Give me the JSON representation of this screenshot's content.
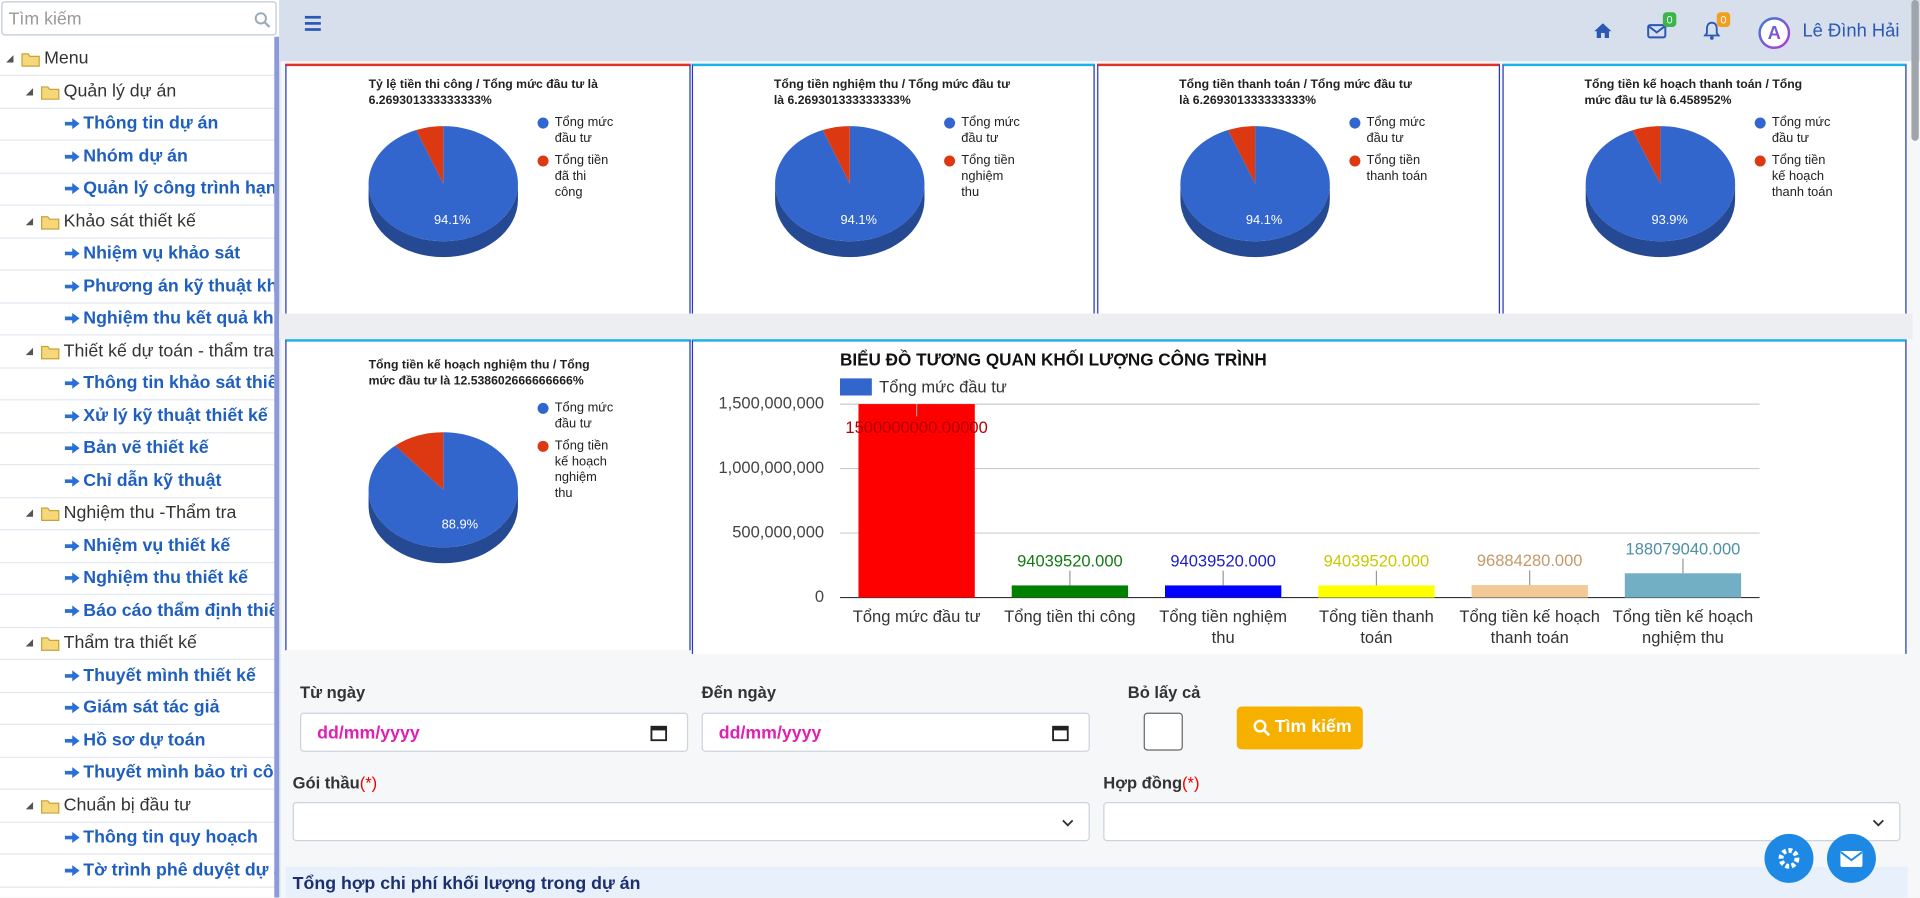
{
  "sidebar": {
    "search_placeholder": "Tìm kiếm",
    "tree": {
      "label": "Menu",
      "groups": [
        {
          "label": "Quản lý dự án",
          "items": [
            "Thông tin dự án",
            "Nhóm dự án",
            "Quản lý công trình hạn"
          ]
        },
        {
          "label": "Khảo sát thiết kế",
          "items": [
            "Nhiệm vụ khảo sát",
            "Phương án kỹ thuật kh",
            "Nghiệm thu kết quả kh"
          ]
        },
        {
          "label": "Thiết kế dự toán - thẩm tra",
          "items": [
            "Thông tin khảo sát thiế",
            "Xử lý kỹ thuật thiết kế",
            "Bản vẽ thiết kế",
            "Chỉ dẫn kỹ thuật"
          ]
        },
        {
          "label": "Nghiệm thu -Thẩm tra",
          "items": [
            "Nhiệm vụ thiết kế",
            "Nghiệm thu thiết kế",
            "Báo cáo thẩm định thiế"
          ]
        },
        {
          "label": "Thẩm tra thiết kế",
          "items": [
            "Thuyết mình thiết kế",
            "Giám sát tác giả",
            "Hồ sơ dự toán",
            "Thuyết mình bảo trì cô"
          ]
        },
        {
          "label": "Chuẩn bị đầu tư",
          "items": [
            "Thông tin quy hoạch",
            "Tờ trình phê duyệt dự á"
          ]
        }
      ]
    }
  },
  "header": {
    "mail_badge": 0,
    "bell_badge": 0,
    "avatar_initial": "A",
    "user_name": "Lê Đình Hải"
  },
  "chart_data": [
    {
      "type": "pie",
      "title": "Tỷ lệ tiền thi công / Tổng mức đầu tư là 6.269301333333333%",
      "categories": [
        "Tổng mức đầu tư",
        "Tổng tiền đã thi công"
      ],
      "values": [
        94.1,
        5.9
      ],
      "value_labels": [
        "94.1%",
        null
      ],
      "colors": [
        "#3366cc",
        "#dc3912"
      ]
    },
    {
      "type": "pie",
      "title": "Tổng tiền nghiệm thu / Tổng mức đầu tư là 6.269301333333333%",
      "categories": [
        "Tổng mức đầu tư",
        "Tổng tiền nghiệm thu"
      ],
      "values": [
        94.1,
        5.9
      ],
      "value_labels": [
        "94.1%",
        null
      ],
      "colors": [
        "#3366cc",
        "#dc3912"
      ]
    },
    {
      "type": "pie",
      "title": "Tổng tiền thanh toán / Tổng mức đầu tư là 6.269301333333333%",
      "categories": [
        "Tổng mức đầu tư",
        "Tổng tiền thanh toán"
      ],
      "values": [
        94.1,
        5.9
      ],
      "value_labels": [
        "94.1%",
        null
      ],
      "colors": [
        "#3366cc",
        "#dc3912"
      ]
    },
    {
      "type": "pie",
      "title": "Tổng tiền kế hoạch thanh toán / Tổng mức đầu tư là 6.458952%",
      "categories": [
        "Tổng mức đầu tư",
        "Tổng tiền kế hoạch thanh toán"
      ],
      "values": [
        93.9,
        6.1
      ],
      "value_labels": [
        "93.9%",
        null
      ],
      "colors": [
        "#3366cc",
        "#dc3912"
      ]
    },
    {
      "type": "pie",
      "title": "Tổng tiền kế hoạch nghiệm thu / Tổng mức đầu tư là 12.538602666666666%",
      "categories": [
        "Tổng mức đầu tư",
        "Tổng tiền kế hoạch nghiệm thu"
      ],
      "values": [
        88.9,
        11.1
      ],
      "value_labels": [
        "88.9%",
        null
      ],
      "colors": [
        "#3366cc",
        "#dc3912"
      ]
    },
    {
      "type": "bar",
      "title": "BIỂU ĐỒ TƯƠNG QUAN KHỐI LƯỢNG CÔNG TRÌNH",
      "categories": [
        "Tổng mức đầu tư",
        "Tổng tiền thi công",
        "Tổng tiền nghiệm thu",
        "Tổng tiền thanh toán",
        "Tổng tiền kế hoạch thanh toán",
        "Tổng tiền kế hoạch nghiệm thu"
      ],
      "series": [
        {
          "name": "Tổng mức đầu tư",
          "color": "#3366cc",
          "values": [
            1500000000,
            94039520,
            94039520,
            94039520,
            96884280,
            188079040
          ],
          "value_labels": [
            "1500000000.00000",
            "94039520.000",
            "94039520.000",
            "94039520.000",
            "96884280.000",
            "188079040.000"
          ]
        }
      ],
      "bar_colors": [
        "#ff0000",
        "#008000",
        "#0000ff",
        "#ffff00",
        "#f3c995",
        "#72afc4"
      ],
      "value_label_colors": [
        "#b00000",
        "#137a13",
        "#1c1ccc",
        "#c9c900",
        "#c29a68",
        "#4d8fa6"
      ],
      "ylim": [
        0,
        1500000000
      ],
      "yticks": [
        0,
        {
          "value": 500000000,
          "label": "500,000,000"
        },
        {
          "value": 1000000000,
          "label": "1,000,000,000"
        },
        {
          "value": 1500000000,
          "label": "1,500,000,000"
        }
      ],
      "grid": true
    }
  ],
  "form": {
    "from_date_label": "Từ ngày",
    "from_date_placeholder": "dd/mm/yyyy",
    "to_date_label": "Đến ngày",
    "to_date_placeholder": "dd/mm/yyyy",
    "checkbox_label": "Bỏ lấy cả",
    "search_button": "Tìm kiếm",
    "package_label": "Gói thầu",
    "package_required": "(*)",
    "contract_label": "Hợp đồng",
    "contract_required": "(*)"
  },
  "section_title": "Tổng hợp chi phí khối lượng trong dự án"
}
